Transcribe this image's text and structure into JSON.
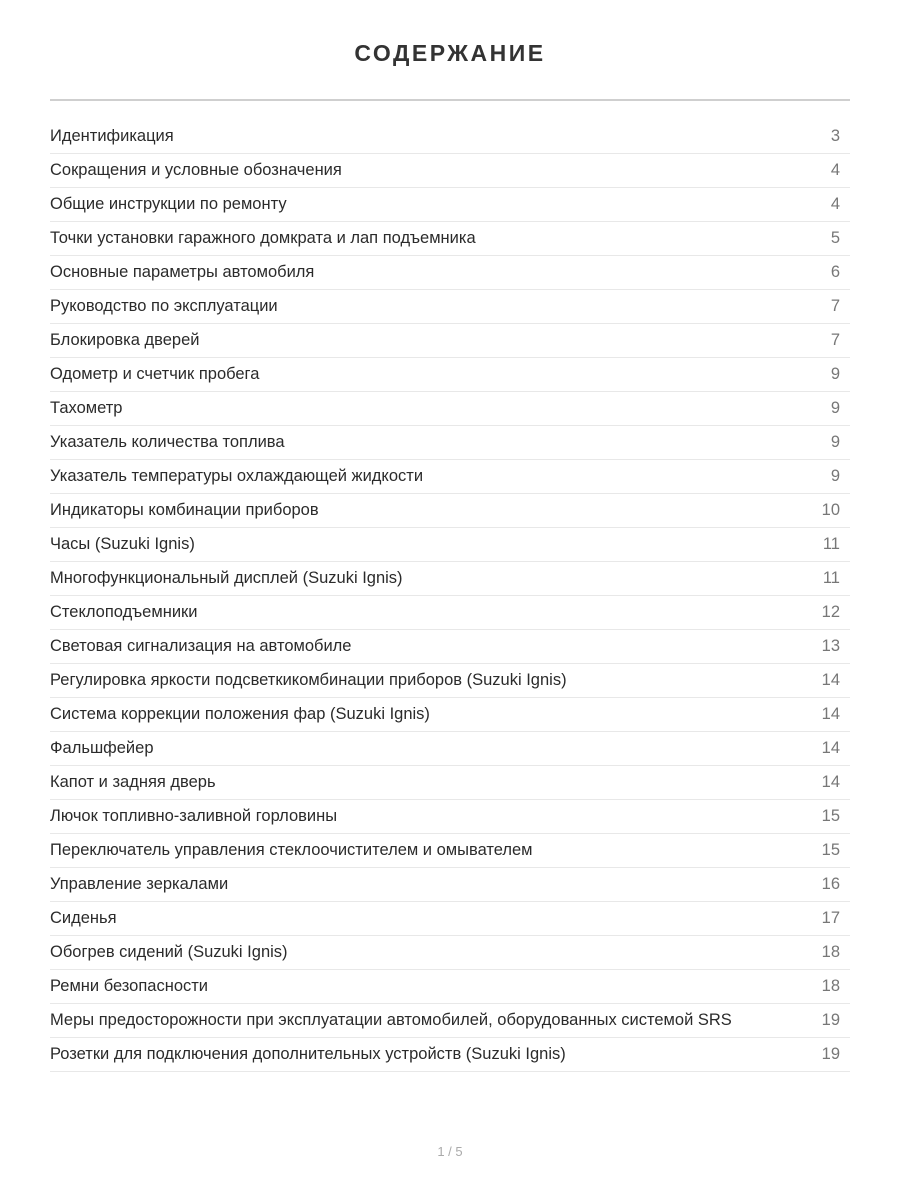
{
  "title": "СОДЕРЖАНИЕ",
  "entries": [
    {
      "label": "Идентификация",
      "page": "3"
    },
    {
      "label": "Сокращения и условные обозначения",
      "page": "4"
    },
    {
      "label": "Общие инструкции по ремонту",
      "page": "4"
    },
    {
      "label": "Точки установки гаражного домкрата и лап подъемника",
      "page": "5"
    },
    {
      "label": "Основные параметры автомобиля",
      "page": "6"
    },
    {
      "label": "Руководство по эксплуатации",
      "page": "7"
    },
    {
      "label": "Блокировка дверей",
      "page": "7"
    },
    {
      "label": "Одометр и счетчик пробега",
      "page": "9"
    },
    {
      "label": "Тахометр",
      "page": "9"
    },
    {
      "label": "Указатель количества топлива",
      "page": "9"
    },
    {
      "label": "Указатель температуры охлаждающей жидкости",
      "page": "9"
    },
    {
      "label": "Индикаторы комбинации приборов",
      "page": "10"
    },
    {
      "label": "Часы (Suzuki Ignis)",
      "page": "11"
    },
    {
      "label": "Многофункциональный дисплей (Suzuki Ignis)",
      "page": "11"
    },
    {
      "label": "Стеклоподъемники",
      "page": "12"
    },
    {
      "label": "Световая сигнализация на автомобиле",
      "page": "13"
    },
    {
      "label": "Регулировка яркости подсветкикомбинации приборов (Suzuki Ignis)",
      "page": "14"
    },
    {
      "label": "Система коррекции положения фар (Suzuki Ignis)",
      "page": "14"
    },
    {
      "label": "Фальшфейер",
      "page": "14"
    },
    {
      "label": "Капот и задняя дверь",
      "page": "14"
    },
    {
      "label": "Лючок топливно-заливной горловины",
      "page": "15"
    },
    {
      "label": "Переключатель управления стеклоочистителем и омывателем",
      "page": "15"
    },
    {
      "label": "Управление зеркалами",
      "page": "16"
    },
    {
      "label": "Сиденья",
      "page": "17"
    },
    {
      "label": "Обогрев сидений (Suzuki Ignis)",
      "page": "18"
    },
    {
      "label": "Ремни безопасности",
      "page": "18"
    },
    {
      "label": "Меры предосторожности при эксплуатации автомобилей, оборудованных системой SRS",
      "page": "19"
    },
    {
      "label": "Розетки для подключения дополнительных устройств (Suzuki Ignis)",
      "page": "19"
    }
  ],
  "pager": "1 / 5"
}
